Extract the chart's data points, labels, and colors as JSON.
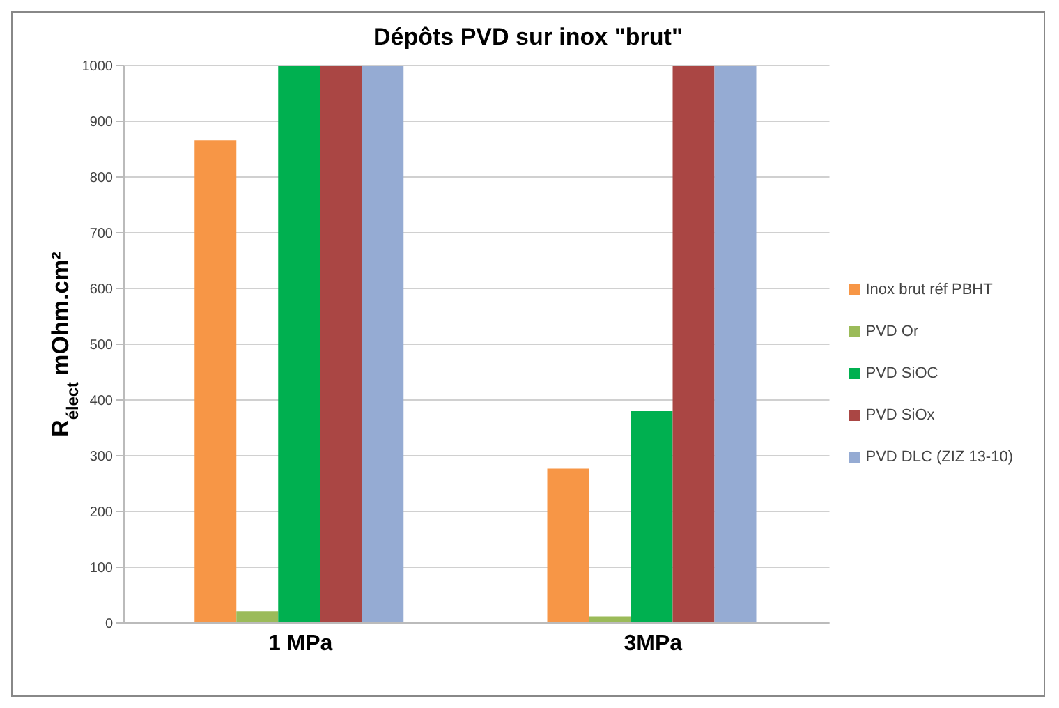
{
  "chart_data": {
    "type": "bar",
    "title": "Dépôts PVD sur inox \"brut\"",
    "ylabel": "R$_{élect}$ mOhm.cm²",
    "categories": [
      "1 MPa",
      "3MPa"
    ],
    "series": [
      {
        "name": "Inox brut réf PBHT",
        "color": "#f79646",
        "values": [
          866,
          277
        ]
      },
      {
        "name": "PVD Or",
        "color": "#9bbb59",
        "values": [
          21,
          12
        ]
      },
      {
        "name": "PVD SiOC",
        "color": "#00b050",
        "values": [
          1000,
          380
        ]
      },
      {
        "name": "PVD SiOx",
        "color": "#aa4644",
        "values": [
          1000,
          1000
        ]
      },
      {
        "name": "PVD DLC (ZIZ 13-10)",
        "color": "#95abd3",
        "values": [
          1000,
          1000
        ]
      }
    ],
    "ylim": [
      0,
      1000
    ],
    "yticks": [
      0,
      100,
      200,
      300,
      400,
      500,
      600,
      700,
      800,
      900,
      1000
    ],
    "grid": "y",
    "legend": "right"
  }
}
